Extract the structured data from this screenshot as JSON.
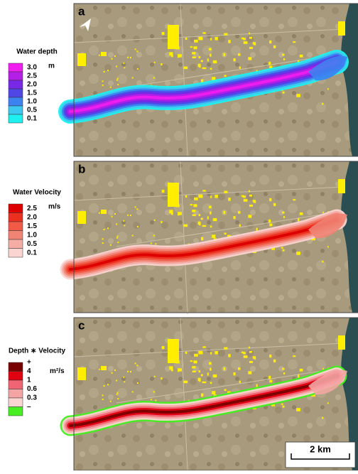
{
  "panels": [
    {
      "label": "a",
      "legend": {
        "title": "Water depth",
        "unit": "m",
        "items": [
          {
            "label": "3.0",
            "color": "#f01ef0"
          },
          {
            "label": "2.5",
            "color": "#b41ee6"
          },
          {
            "label": "2.0",
            "color": "#7828e6"
          },
          {
            "label": "1.5",
            "color": "#5046e6"
          },
          {
            "label": "1.0",
            "color": "#3c82f0"
          },
          {
            "label": "0.5",
            "color": "#3cc8f0"
          },
          {
            "label": "0.1",
            "color": "#1ef0f0"
          }
        ]
      }
    },
    {
      "label": "b",
      "legend": {
        "title": "Water Velocity",
        "unit": "m/s",
        "items": [
          {
            "label": "2.5",
            "color": "#dc0000"
          },
          {
            "label": "2.0",
            "color": "#eb3020"
          },
          {
            "label": "1.5",
            "color": "#f05a46"
          },
          {
            "label": "1.0",
            "color": "#f08474"
          },
          {
            "label": "0.5",
            "color": "#f4aca4"
          },
          {
            "label": "0.1",
            "color": "#fad4d0"
          }
        ]
      }
    },
    {
      "label": "c",
      "legend": {
        "title": "Depth ∗ Velocity",
        "unit": "m²/s",
        "items": [
          {
            "label": "+",
            "color": "#780000"
          },
          {
            "label": "4",
            "color": "#e00010"
          },
          {
            "label": "1",
            "color": "#f06474"
          },
          {
            "label": "0.6",
            "color": "#f4a4a4"
          },
          {
            "label": "0.3",
            "color": "#fad4d0"
          },
          {
            "label": "–",
            "color": "#46ee22"
          }
        ]
      }
    }
  ],
  "scale_bar": "2 km"
}
